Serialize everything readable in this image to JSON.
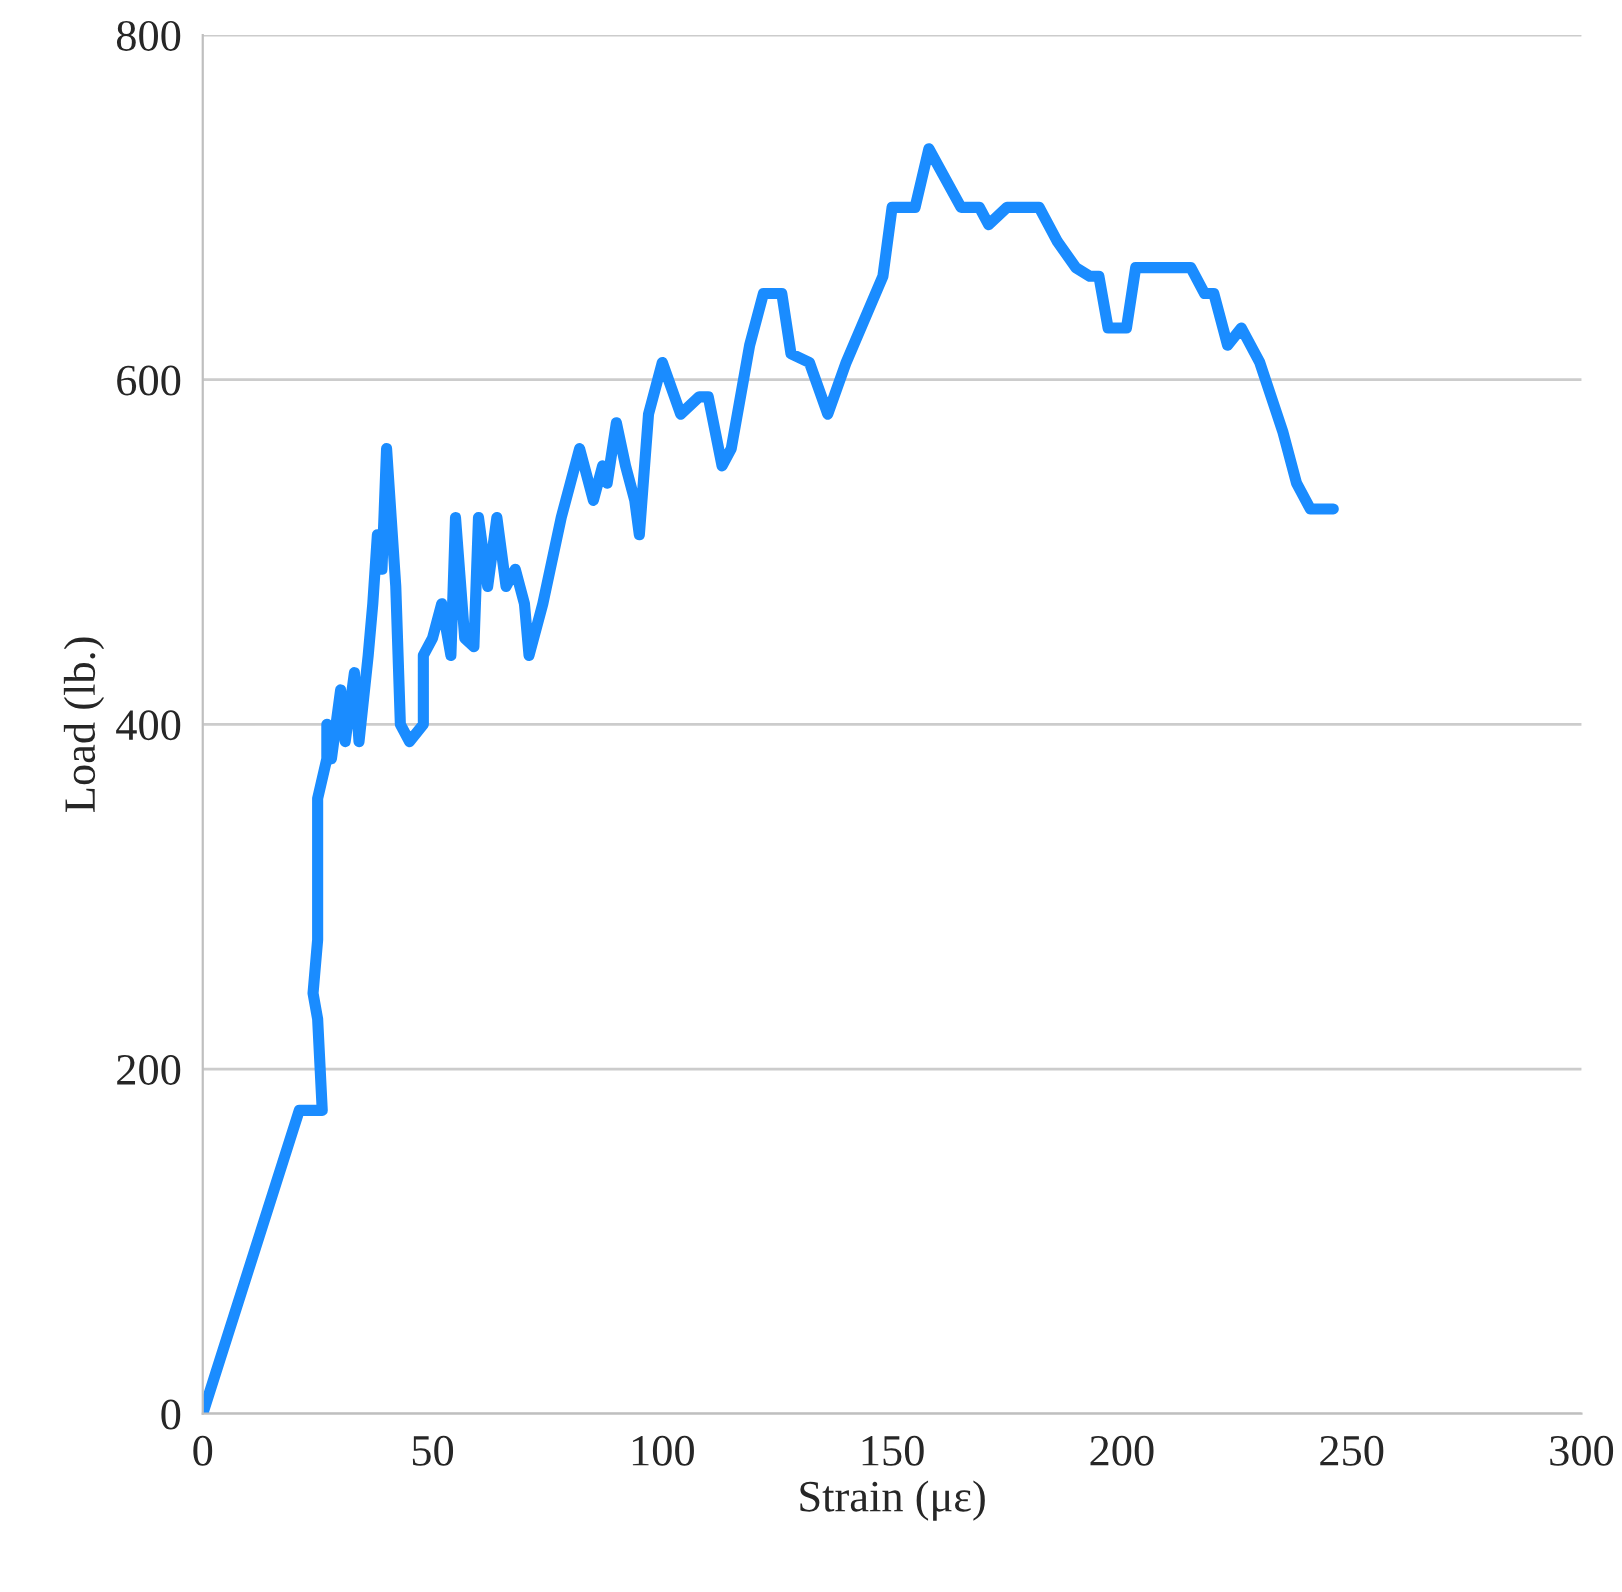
{
  "chart_data": {
    "type": "line",
    "xlabel": "Strain (με)",
    "ylabel": "Load (lb.)",
    "xlim": [
      0,
      300
    ],
    "xticks": [
      0,
      50,
      100,
      150,
      200,
      250,
      300
    ],
    "ylim": [
      0,
      800
    ],
    "yticks": [
      0,
      200,
      400,
      600,
      800
    ],
    "grid": "y",
    "color": "#1a8cff",
    "x": [
      0,
      21,
      26,
      25,
      24,
      25,
      25,
      27,
      27,
      28,
      30,
      31,
      33,
      34,
      36,
      37,
      38,
      39,
      40,
      41,
      42,
      43,
      45,
      48,
      48,
      50,
      52,
      54,
      55,
      57,
      59,
      60,
      62,
      64,
      66,
      68,
      70,
      71,
      74,
      78,
      80,
      82,
      85,
      87,
      88,
      90,
      92,
      94,
      95,
      97,
      100,
      104,
      108,
      110,
      113,
      115,
      119,
      122,
      126,
      128,
      132,
      136,
      140,
      148,
      150,
      155,
      158,
      165,
      169,
      171,
      175,
      182,
      186,
      190,
      193,
      195,
      197,
      201,
      203,
      215,
      218,
      220,
      223,
      226,
      230,
      235,
      238,
      241,
      246
    ],
    "values": [
      0,
      176,
      176,
      229,
      244,
      275,
      357,
      380,
      400,
      380,
      420,
      390,
      430,
      390,
      440,
      470,
      510,
      490,
      560,
      520,
      480,
      400,
      390,
      400,
      440,
      450,
      470,
      440,
      520,
      450,
      445,
      520,
      480,
      520,
      480,
      490,
      470,
      440,
      470,
      520,
      540,
      560,
      530,
      550,
      540,
      575,
      550,
      530,
      510,
      580,
      610,
      580,
      590,
      590,
      550,
      560,
      620,
      650,
      650,
      615,
      610,
      580,
      610,
      660,
      700,
      700,
      734,
      700,
      700,
      690,
      700,
      700,
      680,
      665,
      660,
      660,
      630,
      630,
      665,
      665,
      650,
      650,
      620,
      630,
      610,
      570,
      540,
      525,
      525
    ]
  }
}
